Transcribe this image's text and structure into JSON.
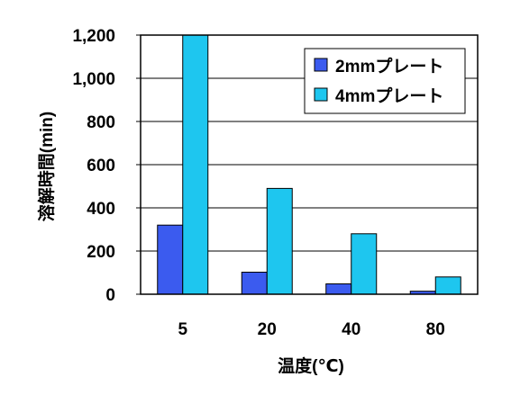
{
  "chart_data": {
    "type": "bar",
    "categories": [
      "5",
      "20",
      "40",
      "80"
    ],
    "series": [
      {
        "name": "2mmプレート",
        "color": "#3b5bef",
        "values": [
          320,
          102,
          48,
          14
        ]
      },
      {
        "name": "4mmプレート",
        "color": "#1ec6ef",
        "values": [
          1200,
          490,
          280,
          80
        ]
      }
    ],
    "xlabel": "温度(℃)",
    "ylabel": "溶解時間(min)",
    "ylim": [
      0,
      1200
    ],
    "yticks": [
      0,
      200,
      400,
      600,
      800,
      1000,
      1200
    ],
    "ytick_labels": [
      "0",
      "200",
      "400",
      "600",
      "800",
      "1,000",
      "1,200"
    ],
    "grid": true,
    "legend_position": "top-right"
  }
}
